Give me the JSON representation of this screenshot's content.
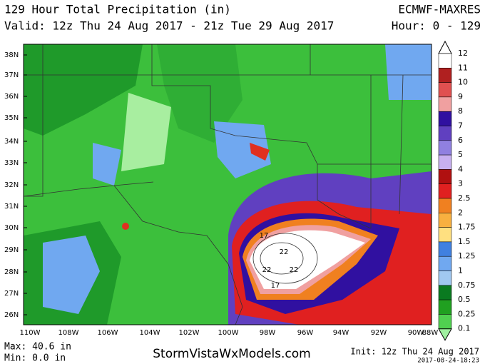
{
  "header": {
    "title": "129 Hour Total Precipitation (in)",
    "valid": "Valid: 12z Thu 24 Aug 2017 - 21z Tue 29 Aug 2017",
    "model": "ECMWF-MAXRES",
    "hour": "Hour: 0 - 129"
  },
  "map": {
    "lat_labels": [
      "38N",
      "37N",
      "36N",
      "35N",
      "34N",
      "33N",
      "32N",
      "31N",
      "30N",
      "29N",
      "28N",
      "27N",
      "26N"
    ],
    "lon_labels": [
      "110W",
      "108W",
      "106W",
      "104W",
      "102W",
      "100W",
      "98W",
      "96W",
      "94W",
      "92W",
      "90W",
      "88W"
    ],
    "contour_labels": [
      "17",
      "22",
      "22",
      "22",
      "17"
    ]
  },
  "colorbar": {
    "labels": [
      "12",
      "11",
      "10",
      "9",
      "8",
      "7",
      "6",
      "5",
      "4",
      "3",
      "2.5",
      "2",
      "1.75",
      "1.5",
      "1.25",
      "1",
      "0.75",
      "0.5",
      "0.25",
      "0.1"
    ]
  },
  "footer": {
    "max": "Max: 40.6 in",
    "min": "Min: 0.0 in",
    "site": "StormVistaWxModels.com",
    "init": "Init: 12z Thu 24 Aug 2017",
    "timestamp": "2017-08-24-18:23"
  }
}
